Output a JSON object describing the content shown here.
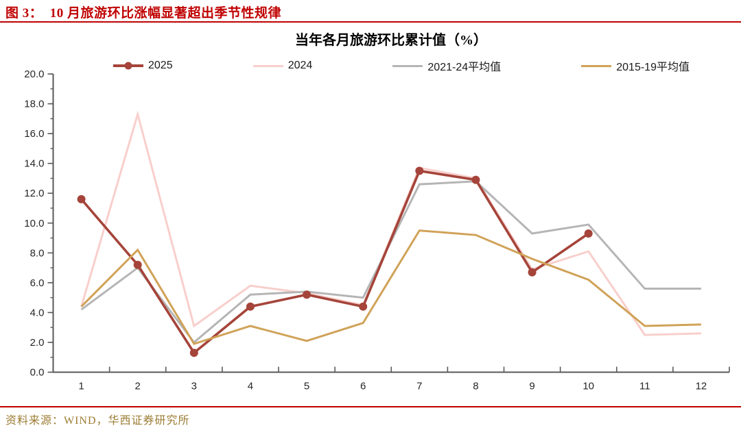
{
  "figure": {
    "caption": "图 3：  10 月旅游环比涨幅显著超出季节性规律",
    "source": "资料来源：WIND，华西证券研究所"
  },
  "theme": {
    "accent_red": "#C00000",
    "source_text_color": "#9C7C33",
    "axis_color": "#595959",
    "tick_label_color": "#262626"
  },
  "chart_data": {
    "type": "line",
    "title": "当年各月旅游环比累计值（%）",
    "xlabel": "",
    "ylabel": "",
    "x": [
      "1",
      "2",
      "3",
      "4",
      "5",
      "6",
      "7",
      "8",
      "9",
      "10",
      "11",
      "12"
    ],
    "ylim": [
      0,
      20
    ],
    "ytick_step": 2,
    "ytick_minor_step": 1,
    "grid": false,
    "legend_position": "top",
    "series": [
      {
        "name": "2025",
        "color": "#A5443A",
        "marker": true,
        "line_width": 3.6,
        "values": [
          11.6,
          7.2,
          1.3,
          4.4,
          5.2,
          4.4,
          13.5,
          12.9,
          6.7,
          9.3,
          null,
          null
        ]
      },
      {
        "name": "2024",
        "color": "#F8CFCB",
        "marker": false,
        "line_width": 3,
        "values": [
          4.4,
          17.3,
          3.1,
          5.8,
          5.3,
          4.5,
          13.7,
          13.0,
          6.9,
          8.1,
          2.5,
          2.6
        ]
      },
      {
        "name": "2021-24平均值",
        "color": "#B5B5B5",
        "marker": false,
        "line_width": 3,
        "values": [
          4.2,
          7.0,
          2.0,
          5.2,
          5.4,
          5.0,
          12.6,
          12.8,
          9.3,
          9.9,
          5.6,
          5.6
        ]
      },
      {
        "name": "2015-19平均值",
        "color": "#D0A258",
        "marker": false,
        "line_width": 3,
        "values": [
          4.4,
          8.2,
          1.9,
          3.1,
          2.1,
          3.3,
          9.5,
          9.2,
          7.6,
          6.2,
          3.1,
          3.2
        ]
      }
    ],
    "draw_order": [
      "2024",
      "2021-24平均值",
      "2025",
      "2015-19平均值"
    ]
  }
}
